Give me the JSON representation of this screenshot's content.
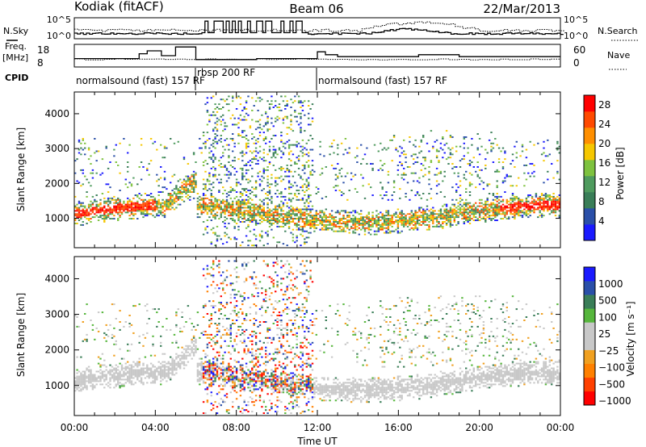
{
  "header": {
    "station": "Kodiak (fitACF)",
    "beam": "Beam 06",
    "date": "22/Mar/2013"
  },
  "top_panels": {
    "nsky_label": "N.Sky",
    "nsearch_label": "N.Search",
    "nsky_ticks": [
      "10^5",
      "10^0"
    ],
    "nsearch_ticks": [
      "10^5",
      "10^0"
    ],
    "freq_label_line1": "Freq.",
    "freq_label_line2": "[MHz]",
    "freq_ticks": [
      "18",
      "8"
    ],
    "nave_label": "Nave",
    "nave_ticks": [
      "60",
      "0"
    ],
    "cpid_label": "CPID"
  },
  "cpid_segments": [
    {
      "text": "normalsound (fast) 157 RF",
      "start_hour": 0.0,
      "end_hour": 6.0
    },
    {
      "text": "rbsp 200 RF",
      "start_hour": 6.0,
      "end_hour": 12.0
    },
    {
      "text": "normalsound (fast) 157 RF",
      "start_hour": 12.0,
      "end_hour": 24.0
    }
  ],
  "colors": {
    "power_scale": [
      "#1a1aff",
      "#2a4fa8",
      "#3a7e58",
      "#4f9b5e",
      "#7ec23f",
      "#f6c700",
      "#ff8f00",
      "#ff4a00",
      "#ff0000"
    ],
    "velocity_scale": [
      "#1a1aff",
      "#2a4fa8",
      "#3a7e58",
      "#56b63c",
      "#c8c8c8",
      "#c8c8c8",
      "#f0a020",
      "#ff8000",
      "#ff4000",
      "#ff0000"
    ]
  },
  "chart_data": [
    {
      "type": "heatmap",
      "panel": "power",
      "xlabel": "",
      "ylabel": "Slant Range [km]",
      "xlim": [
        0,
        24
      ],
      "ylim": [
        180,
        4600
      ],
      "yticks": [
        "1000",
        "2000",
        "3000",
        "4000"
      ],
      "colorbar_label": "Power [dB]",
      "colorbar_ticks": [
        "4",
        "8",
        "12",
        "16",
        "20",
        "24",
        "28"
      ],
      "colorbar_range": [
        0,
        30
      ]
    },
    {
      "type": "heatmap",
      "panel": "velocity",
      "xlabel": "Time UT",
      "ylabel": "Slant Range [km]",
      "xlim": [
        0,
        24
      ],
      "ylim": [
        180,
        4600
      ],
      "xticks": [
        "00:00",
        "04:00",
        "08:00",
        "12:00",
        "16:00",
        "20:00",
        "00:00"
      ],
      "yticks": [
        "1000",
        "2000",
        "3000",
        "4000"
      ],
      "colorbar_label": "Velocity [m s⁻¹]",
      "colorbar_ticks": [
        "1000",
        "500",
        "100",
        "25",
        "−25",
        "−100",
        "−500",
        "−1000"
      ]
    }
  ]
}
